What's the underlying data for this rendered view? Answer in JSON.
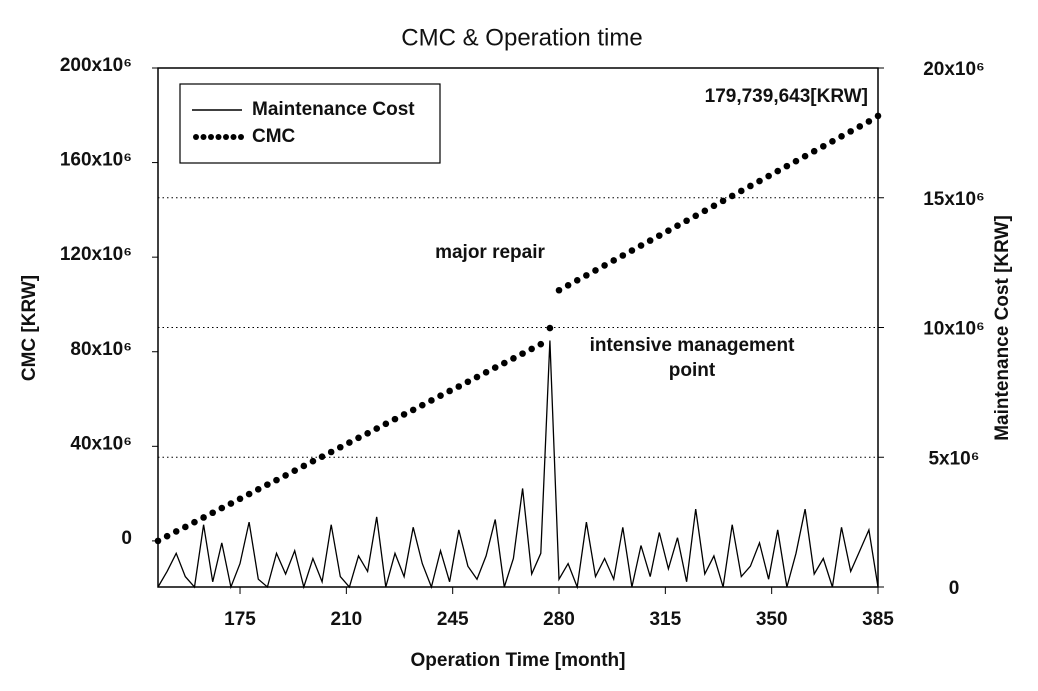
{
  "chart_data": {
    "type": "line",
    "title": "CMC & Operation time",
    "x_label": "Operation Time [month]",
    "y_label": "CMC [KRW]",
    "y2_label": "Maintenance Cost [KRW]",
    "x": [
      148,
      151,
      154,
      157,
      160,
      163,
      166,
      169,
      172,
      175,
      178,
      181,
      184,
      187,
      190,
      193,
      196,
      199,
      202,
      205,
      208,
      211,
      214,
      217,
      220,
      223,
      226,
      229,
      232,
      235,
      238,
      241,
      244,
      247,
      250,
      253,
      256,
      259,
      262,
      265,
      268,
      271,
      274,
      277,
      280,
      283,
      286,
      289,
      292,
      295,
      298,
      301,
      304,
      307,
      310,
      313,
      316,
      319,
      322,
      325,
      328,
      331,
      334,
      337,
      340,
      343,
      346,
      349,
      352,
      355,
      358,
      361,
      364,
      367,
      370,
      373,
      376,
      379,
      382,
      385
    ],
    "series": [
      {
        "name": "Maintenance Cost",
        "color": "#000000",
        "style": "line",
        "axis": "y2",
        "values": [
          0,
          600000,
          1300000,
          400000,
          0,
          2400000,
          200000,
          1700000,
          0,
          900000,
          2500000,
          300000,
          0,
          1300000,
          500000,
          1400000,
          0,
          1100000,
          200000,
          2400000,
          400000,
          0,
          1200000,
          600000,
          2700000,
          0,
          1300000,
          400000,
          2300000,
          900000,
          0,
          1400000,
          200000,
          2200000,
          800000,
          300000,
          1200000,
          2600000,
          0,
          1100000,
          3800000,
          500000,
          1300000,
          9500000,
          300000,
          900000,
          0,
          2500000,
          400000,
          1100000,
          300000,
          2300000,
          0,
          1600000,
          400000,
          2100000,
          700000,
          1900000,
          200000,
          3000000,
          500000,
          1200000,
          0,
          2400000,
          400000,
          800000,
          1700000,
          300000,
          2200000,
          0,
          1300000,
          3000000,
          500000,
          1100000,
          0,
          2300000,
          600000,
          1400000,
          2200000,
          0
        ]
      },
      {
        "name": "CMC",
        "color": "#000000",
        "style": "dots",
        "values": [
          0,
          2000000,
          4000000,
          5900000,
          7900000,
          9900000,
          11900000,
          13900000,
          15800000,
          17800000,
          19800000,
          21800000,
          23800000,
          25700000,
          27700000,
          29700000,
          31700000,
          33700000,
          35600000,
          37600000,
          39600000,
          41600000,
          43600000,
          45500000,
          47500000,
          49500000,
          51500000,
          53500000,
          55400000,
          57400000,
          59400000,
          61400000,
          63400000,
          65300000,
          67300000,
          69300000,
          71300000,
          73300000,
          75200000,
          77200000,
          79200000,
          81200000,
          83200000,
          90000000,
          106000000,
          108100000,
          110200000,
          112300000,
          114400000,
          116500000,
          118600000,
          120700000,
          122800000,
          124900000,
          127000000,
          129100000,
          131200000,
          133300000,
          135400000,
          137500000,
          139600000,
          141700000,
          143800000,
          145900000,
          148000000,
          150100000,
          152200000,
          154300000,
          156400000,
          158500000,
          160600000,
          162700000,
          164800000,
          166900000,
          169000000,
          171100000,
          173200000,
          175300000,
          177400000,
          179739643
        ]
      }
    ],
    "xlim": [
      148,
      385
    ],
    "xticks": [
      175,
      210,
      245,
      280,
      315,
      350,
      385
    ],
    "ylim": [
      -19500000,
      200000000
    ],
    "yticks": [
      {
        "value": 0,
        "label": "0"
      },
      {
        "value": 40000000,
        "label": "40x10⁶"
      },
      {
        "value": 80000000,
        "label": "80x10⁶"
      },
      {
        "value": 120000000,
        "label": "120x10⁶"
      },
      {
        "value": 160000000,
        "label": "160x10⁶"
      },
      {
        "value": 200000000,
        "label": "200x10⁶"
      }
    ],
    "y2lim": [
      0,
      20000000
    ],
    "y2ticks": [
      {
        "value": 0,
        "label": "0"
      },
      {
        "value": 5000000,
        "label": "5x10⁶"
      },
      {
        "value": 10000000,
        "label": "10x10⁶"
      },
      {
        "value": 15000000,
        "label": "15x10⁶"
      },
      {
        "value": 20000000,
        "label": "20x10⁶"
      }
    ],
    "grid": "y2",
    "legend": "upper-left",
    "annotations": [
      "179,739,643[KRW]",
      "major repair",
      "intensive management",
      "point"
    ]
  }
}
